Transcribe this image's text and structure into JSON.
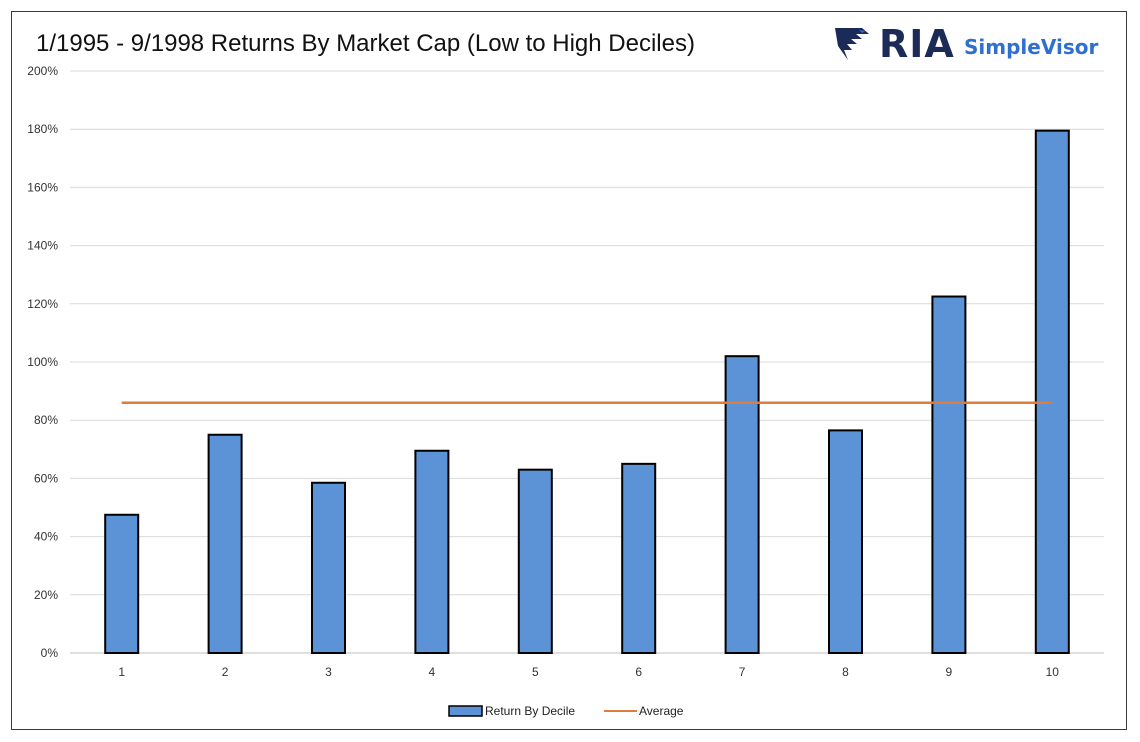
{
  "header": {
    "title": "1/1995 - 9/1998  Returns By Market Cap (Low to High Deciles)"
  },
  "logo": {
    "brand": "RIA",
    "product": "SimpleVisor",
    "brand_color": "#1b2a57",
    "product_color": "#2f6fd0"
  },
  "chart_data": {
    "type": "bar",
    "title": "1/1995 - 9/1998  Returns By Market Cap (Low to High Deciles)",
    "xlabel": "",
    "ylabel": "",
    "categories": [
      "1",
      "2",
      "3",
      "4",
      "5",
      "6",
      "7",
      "8",
      "9",
      "10"
    ],
    "series": [
      {
        "name": "Return By Decile",
        "type": "bar",
        "color": "#5b93d6",
        "values": [
          47.5,
          75,
          58.5,
          69.5,
          63,
          65,
          102,
          76.5,
          122.5,
          179.5
        ]
      },
      {
        "name": "Average",
        "type": "line",
        "color": "#e07b39",
        "values": [
          86,
          86,
          86,
          86,
          86,
          86,
          86,
          86,
          86,
          86
        ]
      }
    ],
    "ylim": [
      0,
      200
    ],
    "yticks": [
      0,
      20,
      40,
      60,
      80,
      100,
      120,
      140,
      160,
      180,
      200
    ],
    "ytick_labels": [
      "0%",
      "20%",
      "40%",
      "60%",
      "80%",
      "100%",
      "120%",
      "140%",
      "160%",
      "180%",
      "200%"
    ],
    "grid": true,
    "legend": "bottom-center"
  }
}
